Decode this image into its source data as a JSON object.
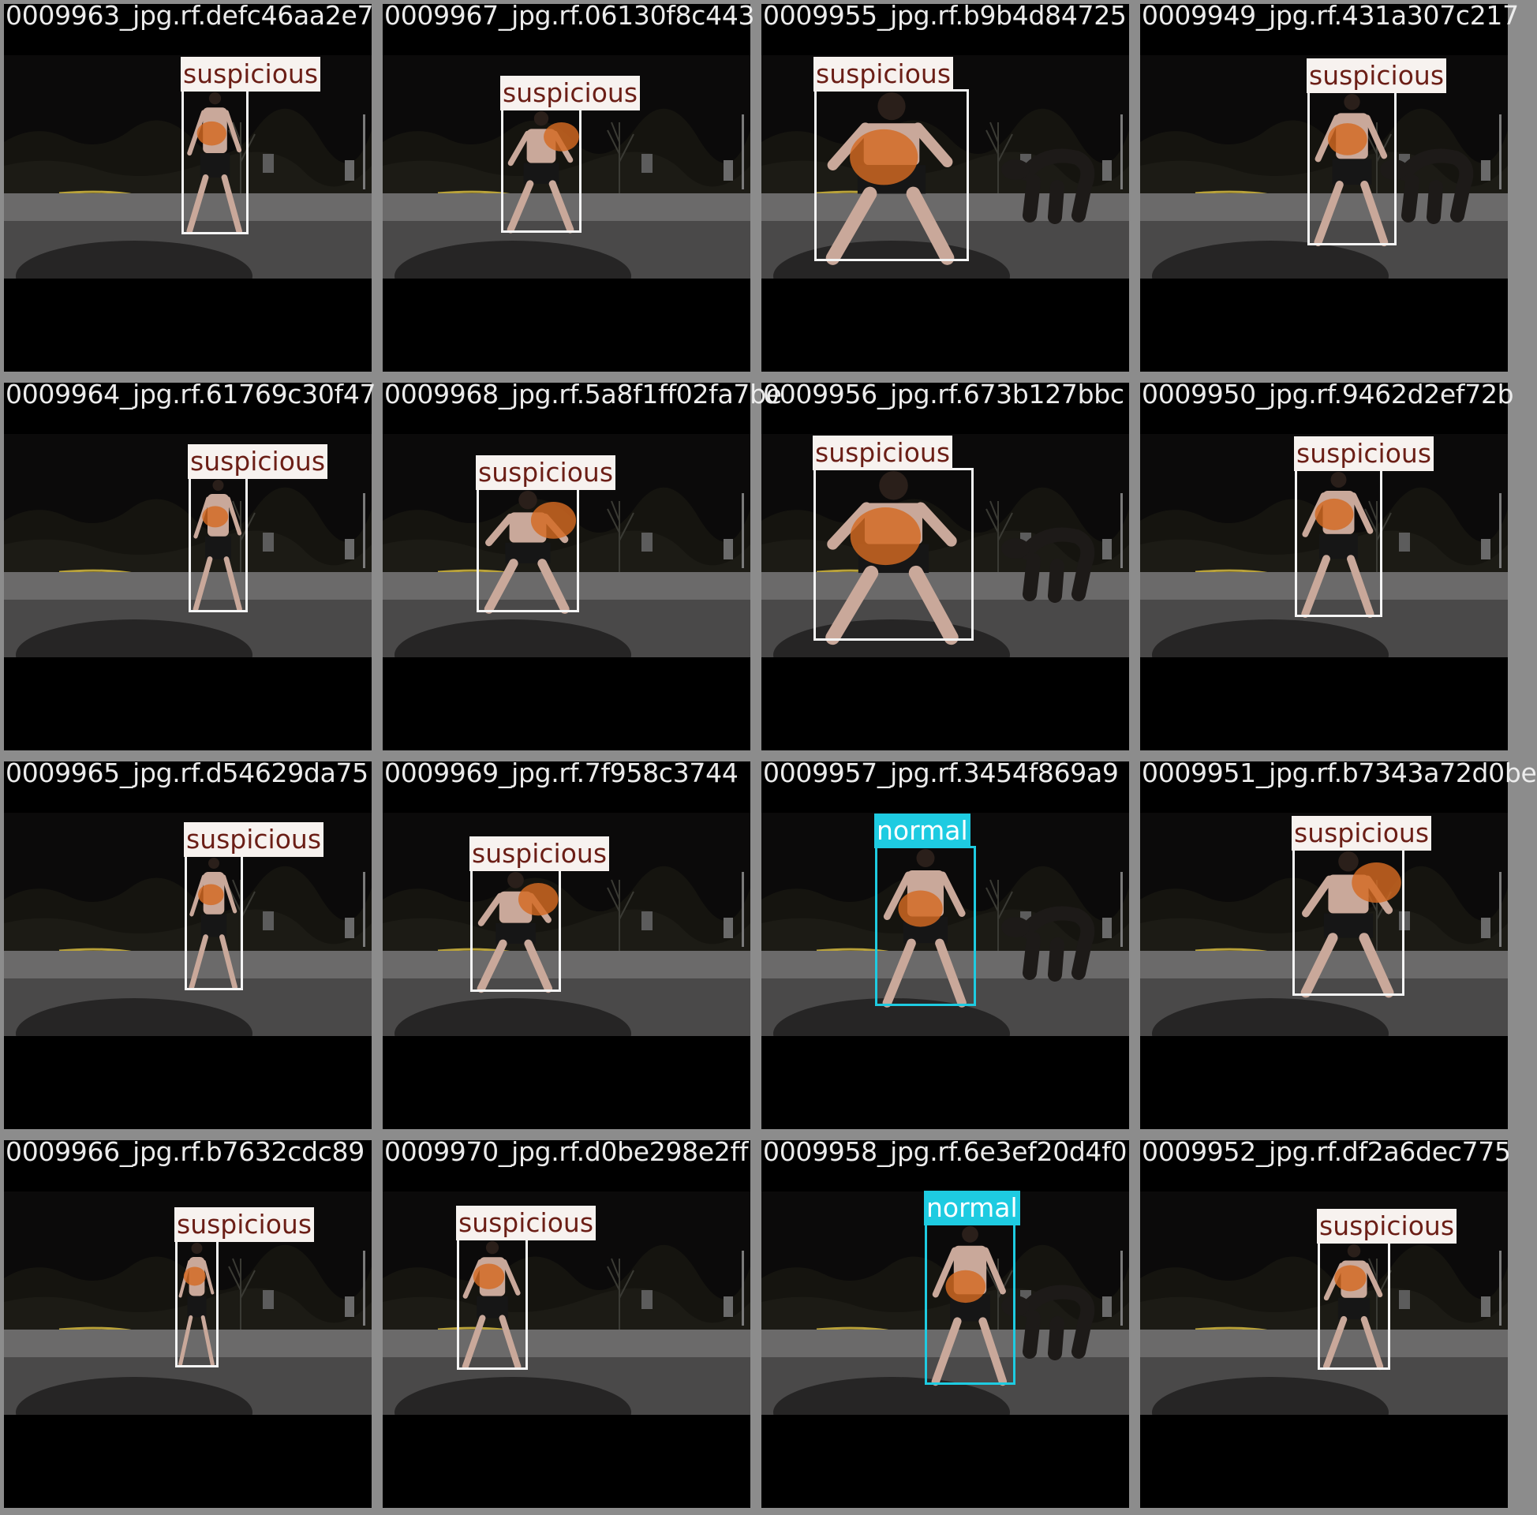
{
  "colors": {
    "suspicious_box": "#f5f5f5",
    "suspicious_tag_bg": "#f7f2ef",
    "suspicious_tag_text": "#6b1e16",
    "normal_box": "#1ecbe1",
    "normal_tag_text": "#ffffff",
    "frame_border": "#8c8c8c"
  },
  "tiles": [
    {
      "filename": "0009963_jpg.rf.defc46aa2e7",
      "label": "suspicious"
    },
    {
      "filename": "0009967_jpg.rf.06130f8c443",
      "label": "suspicious"
    },
    {
      "filename": "0009955_jpg.rf.b9b4d84725",
      "label": "suspicious"
    },
    {
      "filename": "0009949_jpg.rf.431a307c217",
      "label": "suspicious"
    },
    {
      "filename": "0009964_jpg.rf.61769c30f47",
      "label": "suspicious"
    },
    {
      "filename": "0009968_jpg.rf.5a8f1ff02fa7be",
      "label": "suspicious"
    },
    {
      "filename": "0009956_jpg.rf.673b127bbc",
      "label": "suspicious"
    },
    {
      "filename": "0009950_jpg.rf.9462d2ef72b",
      "label": "suspicious"
    },
    {
      "filename": "0009965_jpg.rf.d54629da75",
      "label": "suspicious"
    },
    {
      "filename": "0009969_jpg.rf.7f958c3744",
      "label": "suspicious"
    },
    {
      "filename": "0009957_jpg.rf.3454f869a9",
      "label": "normal"
    },
    {
      "filename": "0009951_jpg.rf.b7343a72d0be",
      "label": "suspicious"
    },
    {
      "filename": "0009966_jpg.rf.b7632cdc89",
      "label": "suspicious"
    },
    {
      "filename": "0009970_jpg.rf.d0be298e2ff",
      "label": "suspicious"
    },
    {
      "filename": "0009958_jpg.rf.6e3ef20d4f0",
      "label": "normal"
    },
    {
      "filename": "0009952_jpg.rf.df2a6dec775",
      "label": "suspicious"
    }
  ]
}
